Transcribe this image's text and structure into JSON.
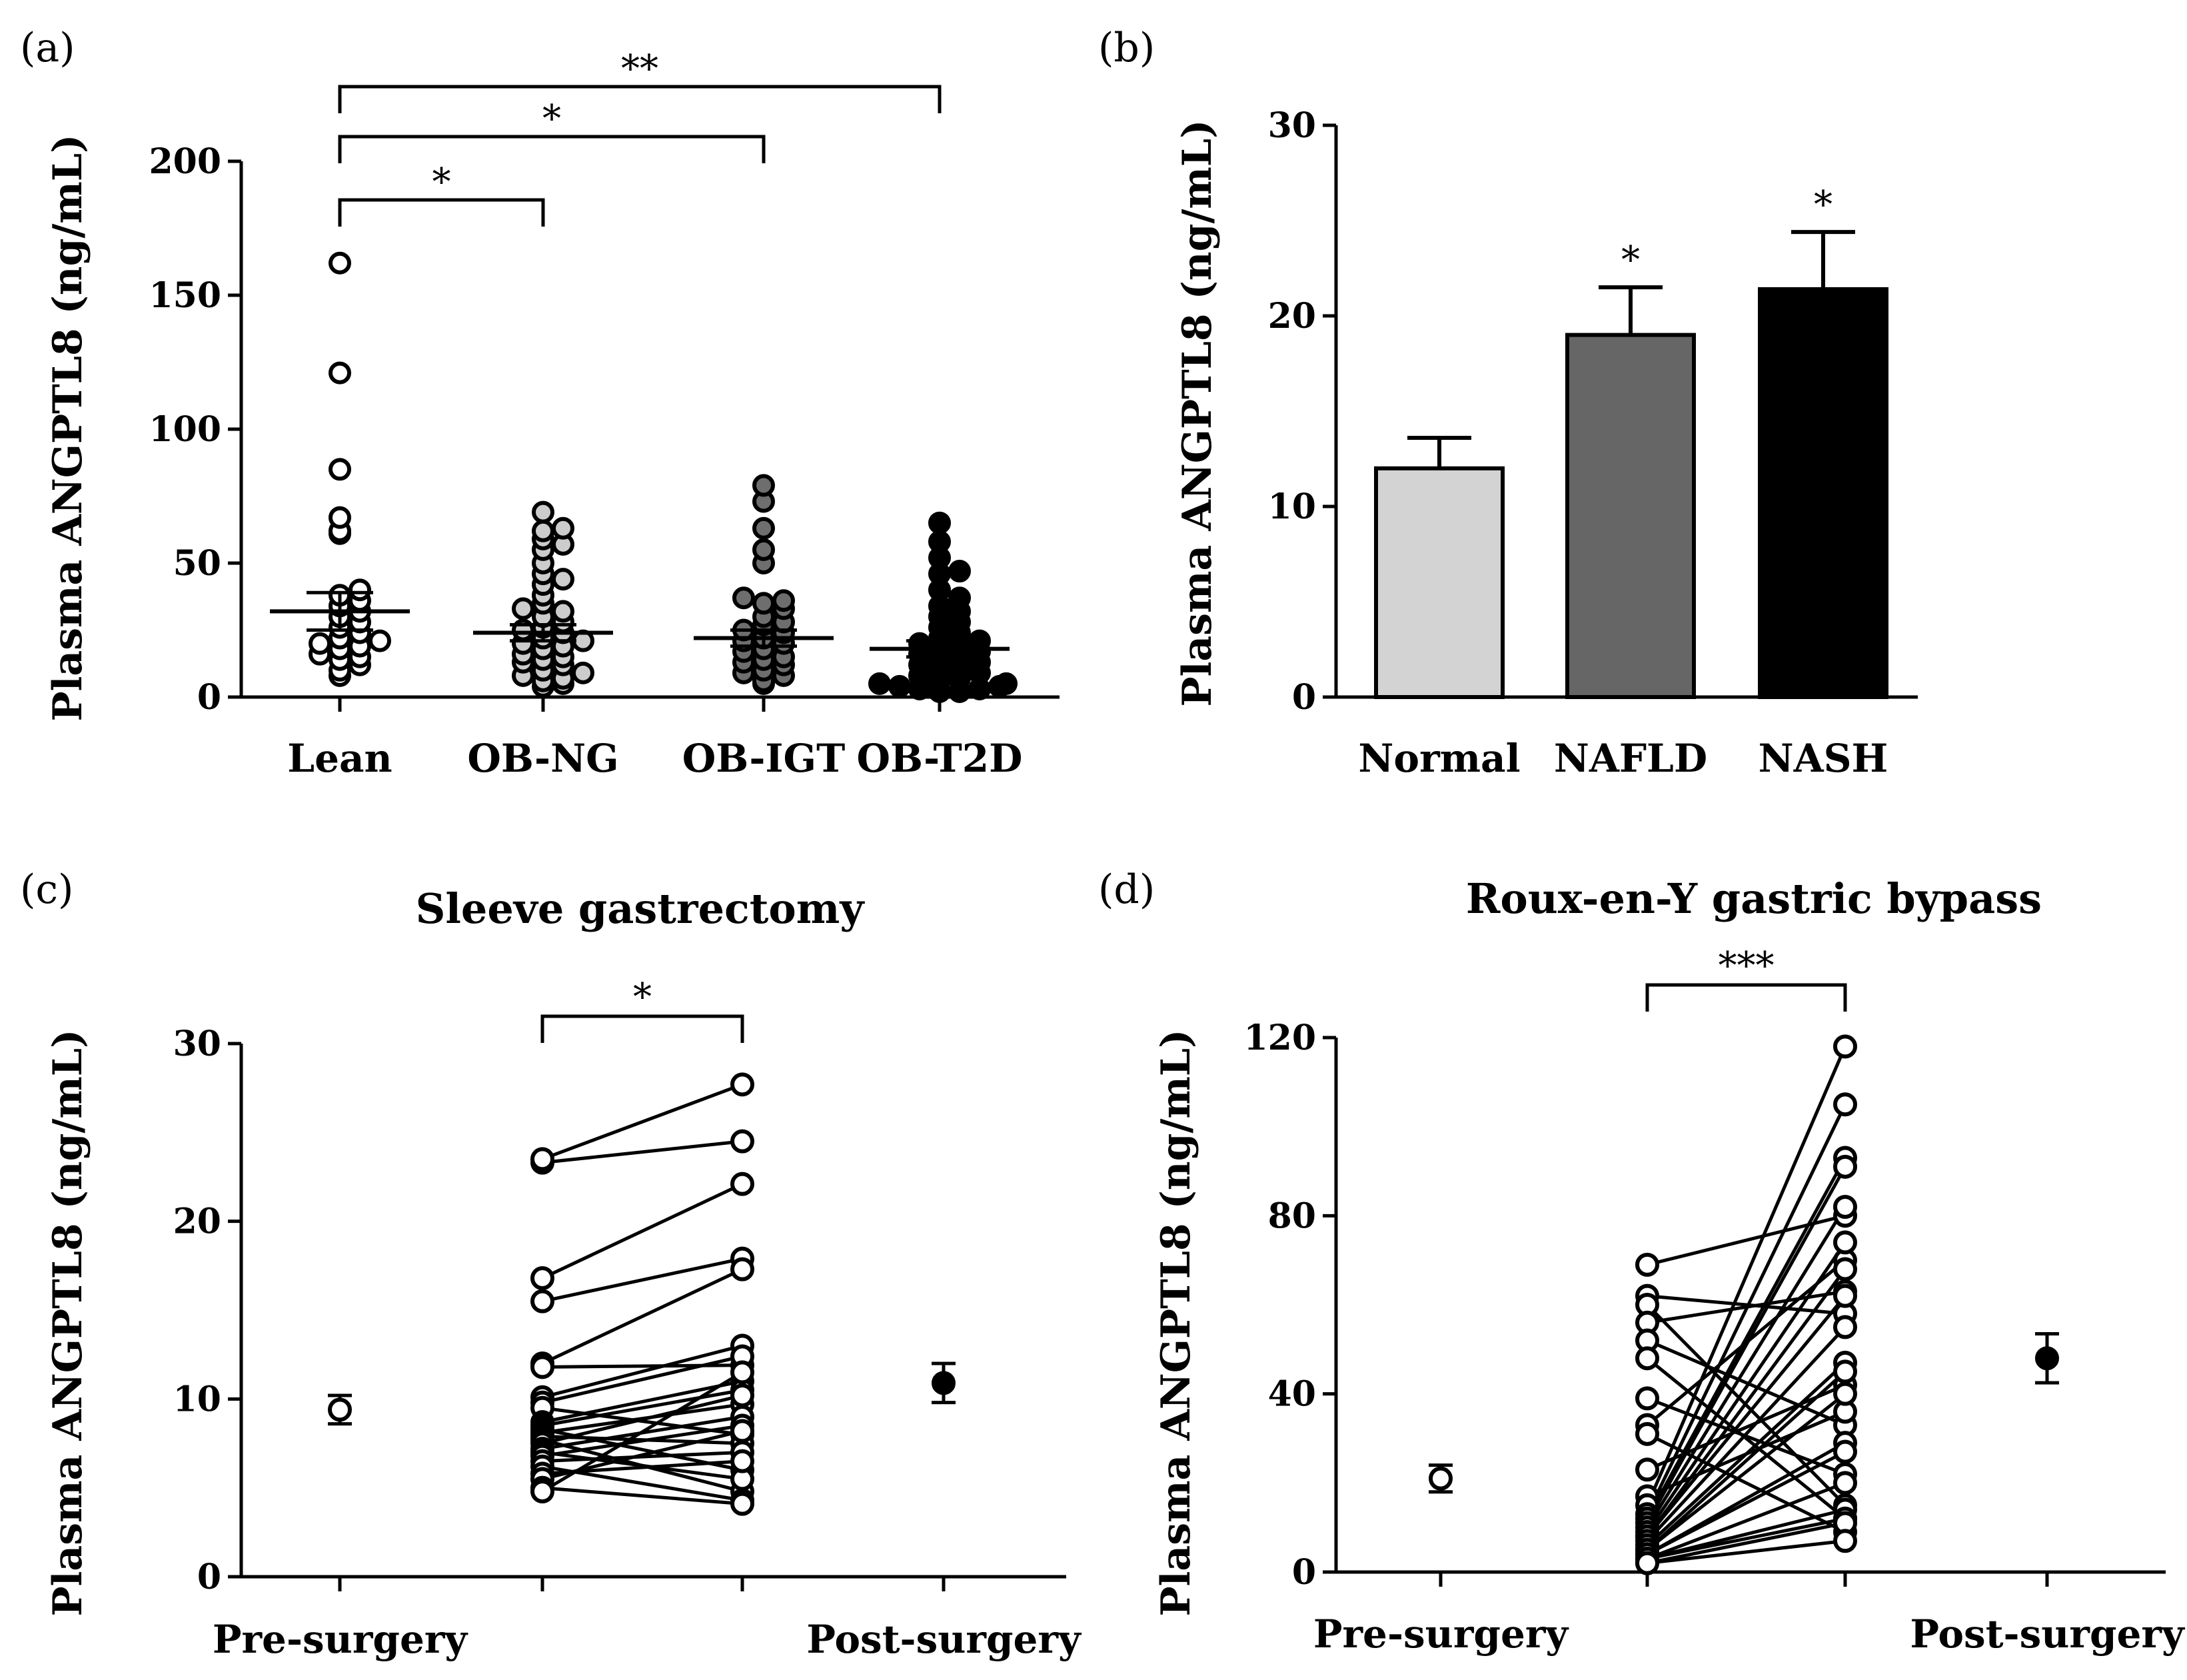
{
  "chart_data": [
    {
      "panel": "(a)",
      "type": "scatter",
      "title": "",
      "ylabel": "Plasma ANGPTL8 (ng/mL)",
      "ylim": [
        0,
        200
      ],
      "yticks": [
        "0",
        "50",
        "100",
        "150",
        "200"
      ],
      "categories": [
        "Lean",
        "OB-NG",
        "OB-IGT",
        "OB-T2D"
      ],
      "colors": {
        "Lean": "#ffffff",
        "OB-NG": "#cccccc",
        "OB-IGT": "#6e6e6e",
        "OB-T2D": "#000000"
      },
      "series": [
        {
          "name": "Lean",
          "mean": 32,
          "sem": 7,
          "values": [
            162,
            121,
            85,
            67,
            62,
            61,
            40,
            38,
            36,
            34,
            32,
            30,
            28,
            26,
            24,
            22,
            21,
            20,
            19,
            18,
            16,
            15,
            14,
            12,
            10,
            8
          ]
        },
        {
          "name": "OB-NG",
          "mean": 24,
          "sem": 3,
          "values": [
            69,
            63,
            62,
            59,
            57,
            55,
            50,
            46,
            44,
            42,
            38,
            35,
            33,
            32,
            30,
            28,
            26,
            25,
            24,
            22,
            21,
            20,
            19,
            18,
            16,
            15,
            14,
            13,
            12,
            10,
            9,
            8,
            7,
            6,
            5,
            4
          ]
        },
        {
          "name": "OB-IGT",
          "mean": 22,
          "sem": 3,
          "values": [
            79,
            73,
            63,
            55,
            50,
            37,
            36,
            35,
            33,
            30,
            28,
            27,
            25,
            24,
            22,
            21,
            20,
            18,
            17,
            15,
            14,
            13,
            12,
            10,
            9,
            8,
            6,
            5
          ]
        },
        {
          "name": "OB-T2D",
          "mean": 18,
          "sem": 3,
          "values": [
            65,
            58,
            52,
            47,
            46,
            40,
            37,
            34,
            32,
            30,
            28,
            26,
            24,
            22,
            21,
            20,
            19,
            18,
            17,
            16,
            15,
            14,
            13,
            12,
            11,
            10,
            9,
            8,
            7,
            6,
            5,
            5,
            4,
            4,
            3,
            3,
            2,
            2
          ]
        }
      ],
      "significance": [
        {
          "from": "Lean",
          "to": "OB-NG",
          "label": "*"
        },
        {
          "from": "Lean",
          "to": "OB-IGT",
          "label": "*"
        },
        {
          "from": "Lean",
          "to": "OB-T2D",
          "label": "**"
        }
      ]
    },
    {
      "panel": "(b)",
      "type": "bar",
      "title": "",
      "ylabel": "Plasma ANGPTL8 (ng/mL)",
      "ylim": [
        0,
        30
      ],
      "yticks": [
        "0",
        "10",
        "20",
        "30"
      ],
      "categories": [
        "Normal",
        "NAFLD",
        "NASH"
      ],
      "values": [
        12,
        19,
        21.4
      ],
      "errors": [
        1.6,
        2.5,
        3.0
      ],
      "colors": [
        "#d3d3d3",
        "#666666",
        "#000000"
      ],
      "significance": [
        "",
        "*",
        "*"
      ]
    },
    {
      "panel": "(c)",
      "type": "line",
      "title": "Sleeve gastrectomy",
      "ylabel": "Plasma ANGPTL8 (ng/mL)",
      "ylim": [
        0,
        30
      ],
      "yticks": [
        "0",
        "10",
        "20",
        "30"
      ],
      "xlabels": [
        "Pre-surgery",
        "Post-surgery"
      ],
      "pre_mean": {
        "value": 9.4,
        "sem": 0.8
      },
      "post_mean": {
        "value": 10.9,
        "sem": 1.1
      },
      "pairs": [
        [
          23.3,
          24.5
        ],
        [
          23.5,
          27.7
        ],
        [
          16.8,
          22.1
        ],
        [
          15.5,
          17.9
        ],
        [
          12.0,
          17.3
        ],
        [
          11.8,
          11.9
        ],
        [
          10.1,
          13.0
        ],
        [
          9.8,
          12.4
        ],
        [
          9.5,
          8.0
        ],
        [
          8.7,
          11.0
        ],
        [
          8.5,
          10.5
        ],
        [
          8.3,
          6.0
        ],
        [
          8.1,
          9.7
        ],
        [
          7.9,
          7.5
        ],
        [
          7.7,
          4.8
        ],
        [
          7.5,
          10.2
        ],
        [
          7.2,
          9.0
        ],
        [
          7.0,
          5.5
        ],
        [
          6.8,
          8.5
        ],
        [
          6.5,
          7.0
        ],
        [
          6.2,
          4.3
        ],
        [
          5.8,
          6.5
        ],
        [
          5.5,
          8.2
        ],
        [
          5.0,
          4.1
        ],
        [
          4.8,
          11.5
        ]
      ],
      "significance": "*"
    },
    {
      "panel": "(d)",
      "type": "line",
      "title": "Roux-en-Y gastric bypass",
      "ylabel": "Plasma ANGPTL8 (ng/mL)",
      "ylim": [
        0,
        120
      ],
      "yticks": [
        "0",
        "40",
        "80",
        "120"
      ],
      "xlabels": [
        "Pre-surgery",
        "Post-surgery"
      ],
      "pre_mean": {
        "value": 21,
        "sem": 3
      },
      "post_mean": {
        "value": 48,
        "sem": 5.5
      },
      "pairs": [
        [
          69,
          80
        ],
        [
          62,
          58
        ],
        [
          60,
          15
        ],
        [
          56,
          63
        ],
        [
          52,
          33
        ],
        [
          48,
          12
        ],
        [
          39,
          22
        ],
        [
          33,
          70
        ],
        [
          31,
          9
        ],
        [
          23,
          42
        ],
        [
          17,
          36
        ],
        [
          15,
          118
        ],
        [
          13,
          105
        ],
        [
          12,
          93
        ],
        [
          11,
          91
        ],
        [
          10,
          82
        ],
        [
          9,
          74
        ],
        [
          8,
          68
        ],
        [
          8,
          62
        ],
        [
          7,
          55
        ],
        [
          6,
          47
        ],
        [
          5,
          45
        ],
        [
          5,
          40
        ],
        [
          4,
          29
        ],
        [
          4,
          27
        ],
        [
          3,
          20
        ],
        [
          3,
          14
        ],
        [
          3,
          12
        ],
        [
          2,
          11
        ],
        [
          2,
          7
        ]
      ],
      "significance": "***"
    }
  ]
}
